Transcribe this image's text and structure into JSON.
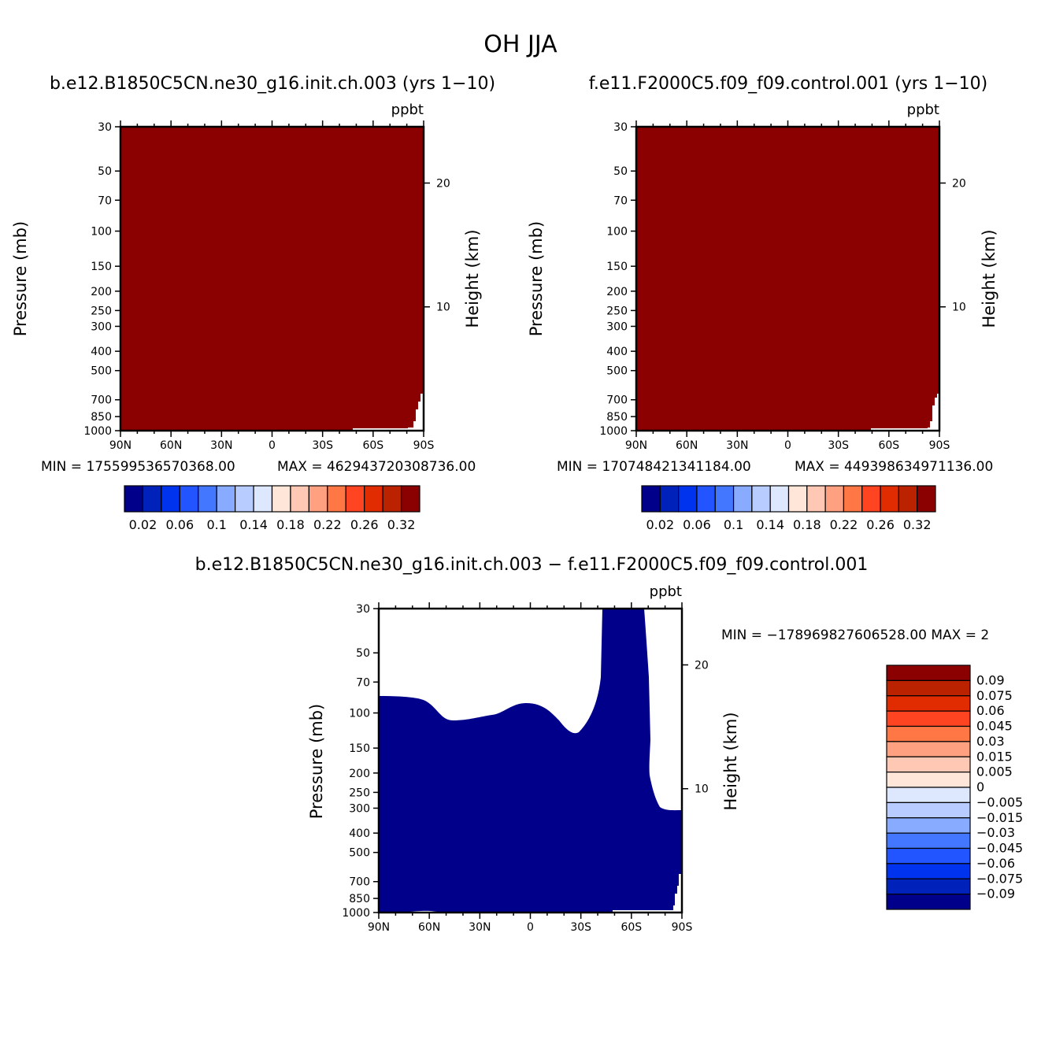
{
  "page": {
    "title": "OH JJA"
  },
  "colors": {
    "bluered_14": [
      "#00008b",
      "#0022bb",
      "#0033ee",
      "#2255ff",
      "#4477ff",
      "#88aaff",
      "#b8ccff",
      "#dde8ff",
      "#ffe6d8",
      "#ffc8b4",
      "#ffa080",
      "#ff7744",
      "#ff4422",
      "#e02c00",
      "#bb2200",
      "#8b0000"
    ],
    "panel_fill_high": "#8b0000",
    "panel_fill_low": "#ffffff",
    "diff_fill": "#00008b"
  },
  "chart_data": [
    {
      "type": "heatmap",
      "id": "panel-left",
      "title": "b.e12.B1850C5CN.ne30_g16.init.ch.003 (yrs 1−10)",
      "unit_label": "ppbt",
      "ylabel": "Pressure (mb)",
      "ylabel_right": "Height (km)",
      "x_ticks": [
        "90N",
        "60N",
        "30N",
        "0",
        "30S",
        "60S",
        "90S"
      ],
      "y_ticks": [
        "30",
        "50",
        "70",
        "100",
        "150",
        "200",
        "250",
        "300",
        "400",
        "500",
        "700",
        "850",
        "1000"
      ],
      "y_ticks_right": [
        "10",
        "20"
      ],
      "min_text": "MIN = 175599536570368.00",
      "max_text": "MAX = 462943720308736.00",
      "colorbar_labels": [
        "0.02",
        "0.06",
        "0.1",
        "0.14",
        "0.18",
        "0.22",
        "0.26",
        "0.32"
      ]
    },
    {
      "type": "heatmap",
      "id": "panel-right",
      "title": "f.e11.F2000C5.f09_f09.control.001 (yrs 1−10)",
      "unit_label": "ppbt",
      "ylabel": "Pressure (mb)",
      "ylabel_right": "Height (km)",
      "x_ticks": [
        "90N",
        "60N",
        "30N",
        "0",
        "30S",
        "60S",
        "90S"
      ],
      "y_ticks": [
        "30",
        "50",
        "70",
        "100",
        "150",
        "200",
        "250",
        "300",
        "400",
        "500",
        "700",
        "850",
        "1000"
      ],
      "y_ticks_right": [
        "10",
        "20"
      ],
      "min_text": "MIN = 170748421341184.00",
      "max_text": "MAX = 449398634971136.00",
      "colorbar_labels": [
        "0.02",
        "0.06",
        "0.1",
        "0.14",
        "0.18",
        "0.22",
        "0.26",
        "0.32"
      ]
    },
    {
      "type": "heatmap",
      "id": "panel-diff",
      "title": "b.e12.B1850C5CN.ne30_g16.init.ch.003 − f.e11.F2000C5.f09_f09.control.001",
      "unit_label": "ppbt",
      "ylabel": "Pressure (mb)",
      "ylabel_right": "Height (km)",
      "x_ticks": [
        "90N",
        "60N",
        "30N",
        "0",
        "30S",
        "60S",
        "90S"
      ],
      "y_ticks": [
        "30",
        "50",
        "70",
        "100",
        "150",
        "200",
        "250",
        "300",
        "400",
        "500",
        "700",
        "850",
        "1000"
      ],
      "y_ticks_right": [
        "10",
        "20"
      ],
      "min_max_text": "MIN = −178969827606528.00   MAX = 2",
      "colorbar_labels": [
        "0.09",
        "0.075",
        "0.06",
        "0.045",
        "0.03",
        "0.015",
        "0.005",
        "0",
        "−0.005",
        "−0.015",
        "−0.03",
        "−0.045",
        "−0.06",
        "−0.075",
        "−0.09"
      ]
    }
  ]
}
